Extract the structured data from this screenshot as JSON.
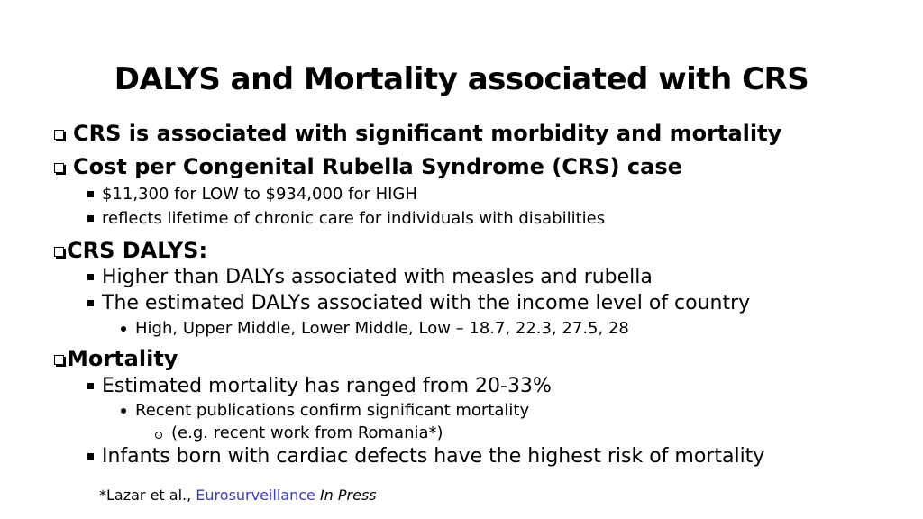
{
  "slide": {
    "title": "DALYS and Mortality associated with CRS",
    "bullets": {
      "b1": "CRS is associated with significant morbidity and mortality",
      "b2": "Cost per Congenital Rubella Syndrome (CRS) case",
      "b2_sub1": "$11,300 for LOW to $934,000 for HIGH",
      "b2_sub2": "reflects lifetime of chronic care for individuals with disabilities",
      "b3": "CRS DALYS:",
      "b3_sub1": "Higher than DALYs associated with measles and rubella",
      "b3_sub2": "The estimated DALYs associated with the income level of country",
      "b3_sub2_sub1": "High, Upper Middle, Lower Middle, Low – 18.7, 22.3, 27.5, 28",
      "b4": "Mortality",
      "b4_sub1": "Estimated mortality has ranged from 20-33%",
      "b4_sub1_sub1": "Recent publications confirm significant mortality",
      "b4_sub1_sub1_sub1": "(e.g. recent work from Romania*)",
      "b4_sub2": "Infants born with cardiac defects have the highest risk of mortality"
    },
    "footnote": {
      "prefix": "*Lazar et al., ",
      "journal": "Eurosurveillance",
      "status": "In Press"
    },
    "colors": {
      "text": "#000000",
      "link": "#3a3ac8",
      "background": "#ffffff"
    }
  }
}
